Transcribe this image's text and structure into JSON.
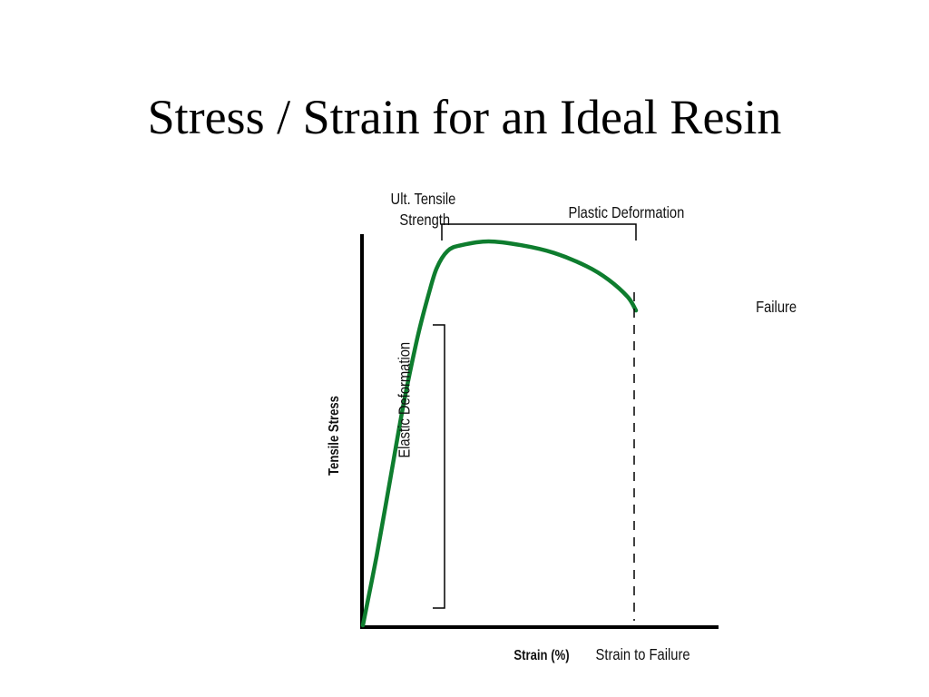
{
  "slide": {
    "title": "Stress / Strain for an Ideal Resin"
  },
  "chart_data": {
    "type": "line",
    "title": "",
    "xlabel": "Strain (%)",
    "ylabel": "Tensile Stress",
    "grid": false,
    "series": [
      {
        "name": "",
        "color": "#0e7d2e",
        "points": [
          [
            0.0,
            0.0
          ],
          [
            0.05,
            0.18
          ],
          [
            0.1,
            0.38
          ],
          [
            0.15,
            0.58
          ],
          [
            0.2,
            0.75
          ],
          [
            0.24,
            0.86
          ],
          [
            0.27,
            0.93
          ],
          [
            0.31,
            0.975
          ],
          [
            0.36,
            0.99
          ],
          [
            0.46,
            1.0
          ],
          [
            0.58,
            0.99
          ],
          [
            0.7,
            0.97
          ],
          [
            0.82,
            0.935
          ],
          [
            0.9,
            0.9
          ],
          [
            0.97,
            0.855
          ],
          [
            1.0,
            0.82
          ]
        ]
      }
    ],
    "annotations": {
      "uts": "Ult. Tensile Strength",
      "plastic": "Plastic Deformation",
      "elastic": "Elastic Deformation",
      "failure": "Failure",
      "strain_to_failure": "Strain to Failure"
    }
  }
}
